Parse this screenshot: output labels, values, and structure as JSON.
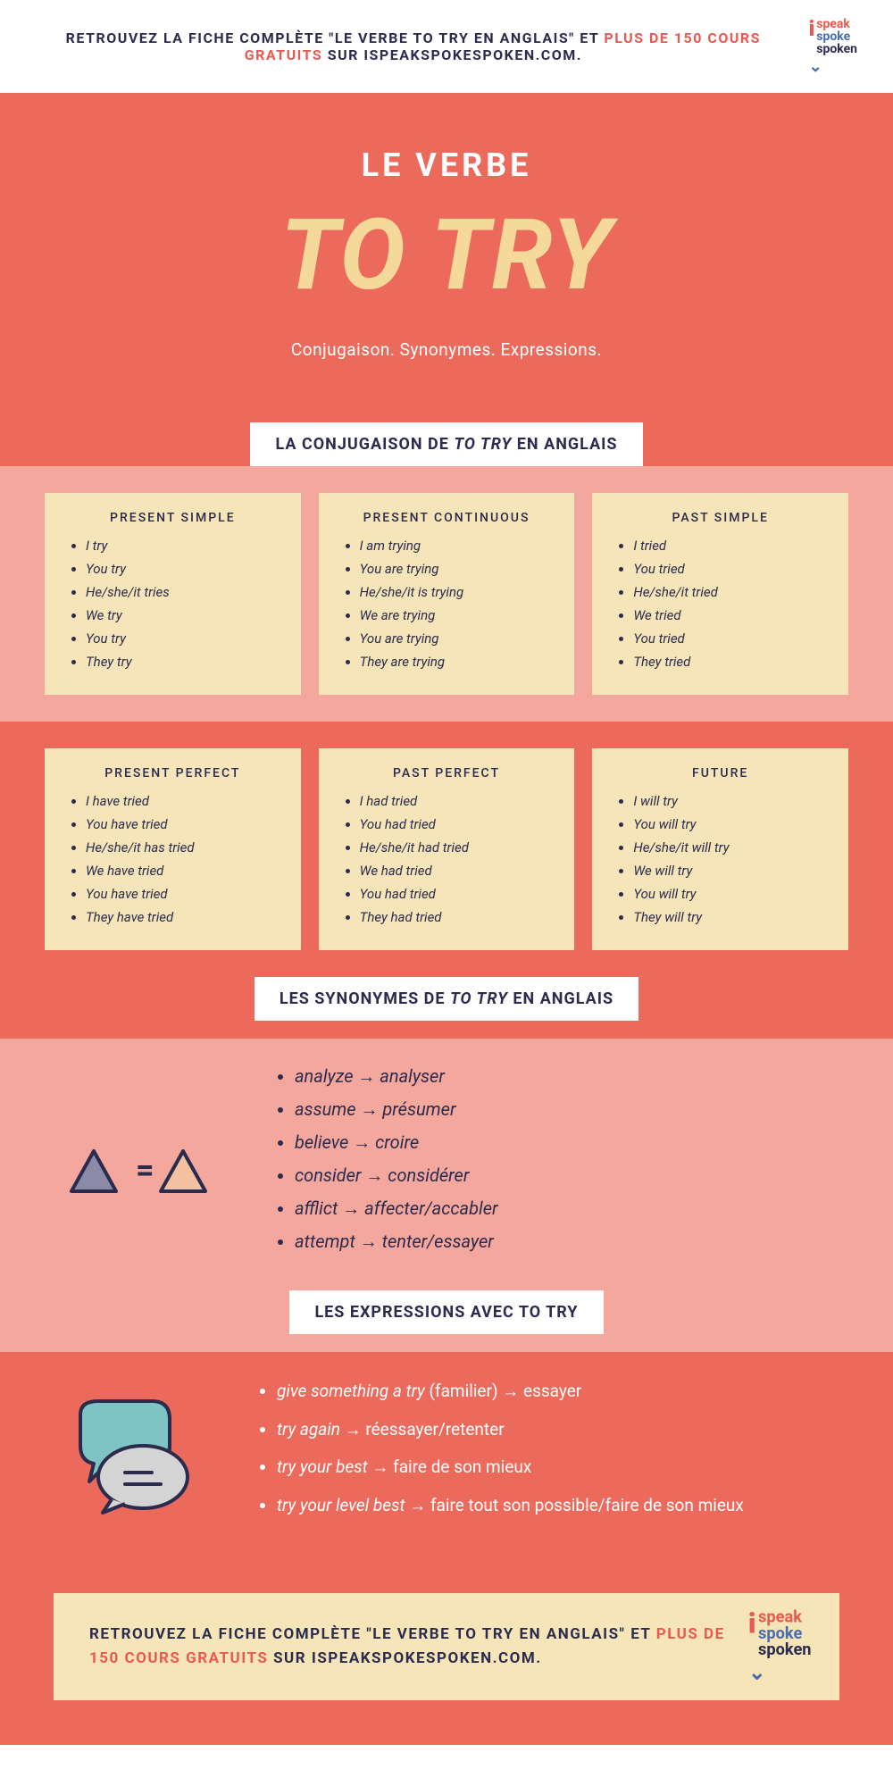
{
  "colors": {
    "primary_red": "#ec6a5c",
    "light_red": "#f4a79d",
    "cream": "#f5e5b8",
    "dark_blue": "#2b2b4e",
    "accent_red": "#e9594f",
    "logo_blue": "#4a6db0"
  },
  "top_banner": {
    "text_1": "RETROUVEZ LA FICHE COMPLÈTE \"LE VERBE TO TRY EN ANGLAIS\" ET ",
    "text_red": "PLUS DE 150 COURS GRATUITS",
    "text_2": " SUR ISPEAKSPOKESPOKEN.COM."
  },
  "logo": {
    "speak": "speak",
    "spoke": "spoke",
    "spoken": "spoken"
  },
  "hero": {
    "subtitle": "LE VERBE",
    "title": "TO TRY",
    "desc": "Conjugaison. Synonymes.  Expressions."
  },
  "conj_header": {
    "pre": "LA CONJUGAISON DE ",
    "ital": "TO TRY",
    "post": " EN ANGLAIS"
  },
  "conj_row1": [
    {
      "title": "PRESENT SIMPLE",
      "items": [
        "I try",
        "You try",
        "He/she/it tries",
        "We try",
        "You try",
        "They try"
      ]
    },
    {
      "title": "PRESENT CONTINUOUS",
      "items": [
        "I am trying",
        "You are trying",
        "He/she/it is trying",
        "We are trying",
        "You are trying",
        "They are trying"
      ]
    },
    {
      "title": "PAST SIMPLE",
      "items": [
        "I tried",
        "You tried",
        "He/she/it tried",
        "We tried",
        "You tried",
        "They tried"
      ]
    }
  ],
  "conj_row2": [
    {
      "title": "PRESENT PERFECT",
      "items": [
        "I have tried",
        "You have tried",
        "He/she/it has tried",
        "We have tried",
        "You have tried",
        "They have tried"
      ]
    },
    {
      "title": "PAST PERFECT",
      "items": [
        "I had tried",
        "You had tried",
        "He/she/it had tried",
        "We had tried",
        "You had tried",
        "They had tried"
      ]
    },
    {
      "title": "FUTURE",
      "items": [
        "I will try",
        "You will try",
        "He/she/it will try",
        "We will try",
        "You will try",
        "They will try"
      ]
    }
  ],
  "syn_header": {
    "pre": "LES SYNONYMES DE ",
    "ital": "TO TRY",
    "post": " EN ANGLAIS"
  },
  "synonyms": [
    {
      "en": "analyze",
      "fr": "analyser"
    },
    {
      "en": "assume",
      "fr": "présumer"
    },
    {
      "en": "believe",
      "fr": "croire"
    },
    {
      "en": "consider",
      "fr": "considérer"
    },
    {
      "en": "afflict",
      "fr": "affecter/accabler"
    },
    {
      "en": "attempt",
      "fr": "tenter/essayer"
    }
  ],
  "expr_header": "LES EXPRESSIONS AVEC TO TRY",
  "expressions": [
    {
      "en": "give something a try",
      "note": " (familier) ",
      "fr": "essayer"
    },
    {
      "en": "try again",
      "note": " ",
      "fr": "réessayer/retenter"
    },
    {
      "en": "try your best",
      "note": " ",
      "fr": "faire de son mieux"
    },
    {
      "en": "try your level best",
      "note": " ",
      "fr": "faire tout son possible/faire de son mieux"
    }
  ],
  "footer": {
    "text_1": "RETROUVEZ LA FICHE COMPLÈTE \"LE VERBE TO TRY EN ANGLAIS\" ET ",
    "text_red": "PLUS DE 150 COURS GRATUITS",
    "text_2": " SUR ISPEAKSPOKESPOKEN.COM."
  }
}
